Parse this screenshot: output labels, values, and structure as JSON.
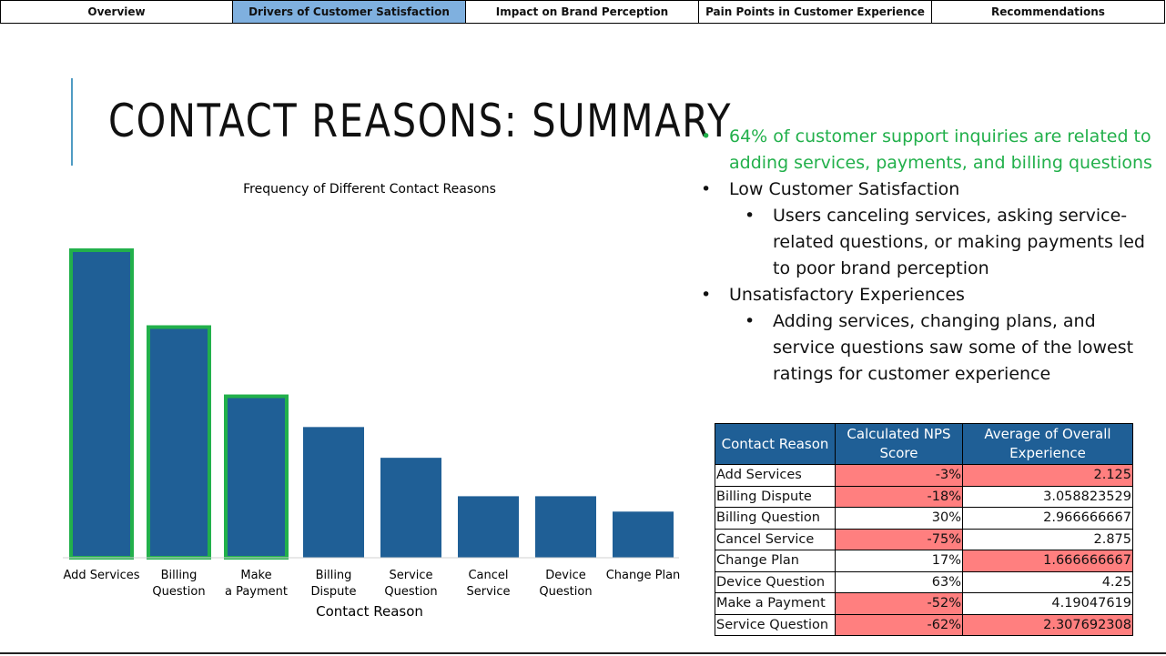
{
  "nav": {
    "tabs": [
      {
        "label": "Overview",
        "active": false
      },
      {
        "label": "Drivers of Customer Satisfaction",
        "active": true
      },
      {
        "label": "Impact on Brand Perception",
        "active": false
      },
      {
        "label": "Pain Points in Customer Experience",
        "active": false
      },
      {
        "label": "Recommendations",
        "active": false
      }
    ]
  },
  "slide": {
    "title": "CONTACT REASONS: SUMMARY"
  },
  "bullets": {
    "b1_text": "64% of customer support inquiries are related to adding services, payments, and billing questions",
    "b2_text": "Low Customer Satisfaction",
    "b2_sub": "Users canceling services, asking service-related questions, or making payments led to poor brand perception",
    "b3_text": "Unsatisfactory Experiences",
    "b3_sub": "Adding services, changing plans, and service questions saw some of the lowest ratings for customer experience",
    "highlight_color": "#22b04b"
  },
  "chart_data": {
    "type": "bar",
    "title": "Frequency of Different Contact Reasons",
    "xlabel": "Contact Reason",
    "ylabel": "",
    "categories": [
      "Add Services",
      "Billing Question",
      "Make a Payment",
      "Billing Dispute",
      "Service Question",
      "Cancel Service",
      "Device Question",
      "Change Plan"
    ],
    "values": [
      40,
      30,
      21,
      17,
      13,
      8,
      8,
      6
    ],
    "highlighted": [
      true,
      true,
      true,
      false,
      false,
      false,
      false,
      false
    ],
    "bar_color": "#1f5f96",
    "highlight_color": "#22b04b",
    "grid": false
  },
  "table": {
    "headers": [
      "Contact Reason",
      "Calculated NPS Score",
      "Average of Overall Experience"
    ],
    "rows": [
      {
        "reason": "Add Services",
        "nps": "-3%",
        "exp": "2.125",
        "nps_red": true,
        "exp_red": true
      },
      {
        "reason": "Billing Dispute",
        "nps": "-18%",
        "exp": "3.058823529",
        "nps_red": true,
        "exp_red": false
      },
      {
        "reason": "Billing Question",
        "nps": "30%",
        "exp": "2.966666667",
        "nps_red": false,
        "exp_red": false
      },
      {
        "reason": "Cancel Service",
        "nps": "-75%",
        "exp": "2.875",
        "nps_red": true,
        "exp_red": false
      },
      {
        "reason": "Change Plan",
        "nps": "17%",
        "exp": "1.666666667",
        "nps_red": false,
        "exp_red": true
      },
      {
        "reason": "Device Question",
        "nps": "63%",
        "exp": "4.25",
        "nps_red": false,
        "exp_red": false
      },
      {
        "reason": "Make a Payment",
        "nps": "-52%",
        "exp": "4.19047619",
        "nps_red": true,
        "exp_red": false
      },
      {
        "reason": "Service Question",
        "nps": "-62%",
        "exp": "2.307692308",
        "nps_red": true,
        "exp_red": true
      }
    ],
    "header_color": "#1f5f96",
    "negative_color": "#ff7f7f"
  }
}
